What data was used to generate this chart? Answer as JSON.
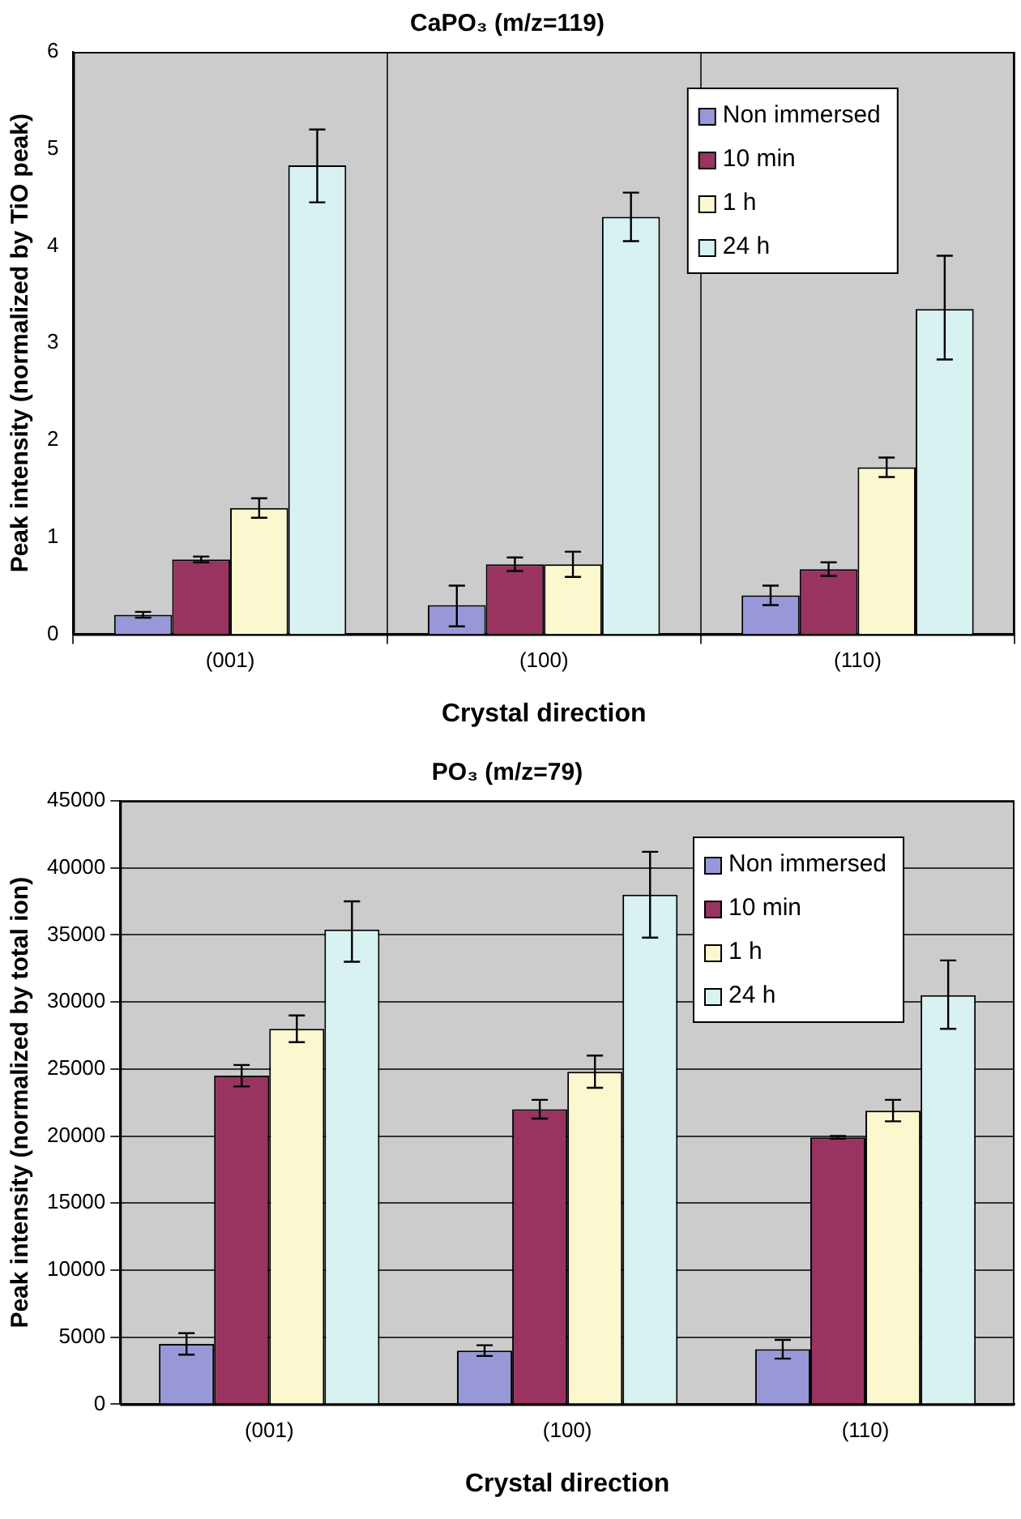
{
  "chart_data": [
    {
      "type": "bar",
      "title": "CaPO₃ (m/z=119)",
      "xlabel": "Crystal direction",
      "ylabel": "Peak intensity (normalized by TiO peak)",
      "categories": [
        "(001)",
        "(100)",
        "(110)"
      ],
      "ylim": [
        0,
        6
      ],
      "yticks": [
        0,
        1,
        2,
        3,
        4,
        5,
        6
      ],
      "grid": "x",
      "legend": "top right",
      "series": [
        {
          "name": "Non immersed",
          "color": "#9898d8",
          "values": [
            0.2,
            0.3,
            0.4
          ],
          "errors": [
            0.03,
            [
              0.08,
              0.5
            ],
            0.1
          ]
        },
        {
          "name": "10 min",
          "color": "#993360",
          "values": [
            0.77,
            0.72,
            0.67
          ],
          "errors": [
            0.03,
            0.07,
            0.07
          ]
        },
        {
          "name": "1 h",
          "color": "#fbf7cf",
          "values": [
            1.3,
            0.72,
            1.72
          ],
          "errors": [
            0.1,
            0.13,
            0.1
          ]
        },
        {
          "name": "24 h",
          "color": "#d8f2f2",
          "values": [
            4.83,
            4.3,
            3.35
          ],
          "errors": [
            [
              4.45,
              5.2
            ],
            [
              4.05,
              4.55
            ],
            [
              2.83,
              3.9
            ]
          ]
        }
      ]
    },
    {
      "type": "bar",
      "title": "PO₃ (m/z=79)",
      "xlabel": "Crystal direction",
      "ylabel": "Peak intensity (normalized by total ion)",
      "categories": [
        "(001)",
        "(100)",
        "(110)"
      ],
      "ylim": [
        0,
        45000
      ],
      "yticks": [
        0,
        5000,
        10000,
        15000,
        20000,
        25000,
        30000,
        35000,
        40000,
        45000
      ],
      "grid": "y",
      "legend": "top right",
      "series": [
        {
          "name": "Non immersed",
          "color": "#9898d8",
          "values": [
            4500,
            4000,
            4100
          ],
          "errors": [
            800,
            400,
            700
          ]
        },
        {
          "name": "10 min",
          "color": "#993360",
          "values": [
            24500,
            22000,
            19900
          ],
          "errors": [
            800,
            700,
            100
          ]
        },
        {
          "name": "1 h",
          "color": "#fbf7cf",
          "values": [
            28000,
            24800,
            21900
          ],
          "errors": [
            1000,
            1200,
            800
          ]
        },
        {
          "name": "24 h",
          "color": "#d8f2f2",
          "values": [
            35400,
            38000,
            30500
          ],
          "errors": [
            [
              33000,
              37500
            ],
            [
              34800,
              41200
            ],
            [
              28000,
              33100
            ]
          ]
        }
      ]
    }
  ]
}
